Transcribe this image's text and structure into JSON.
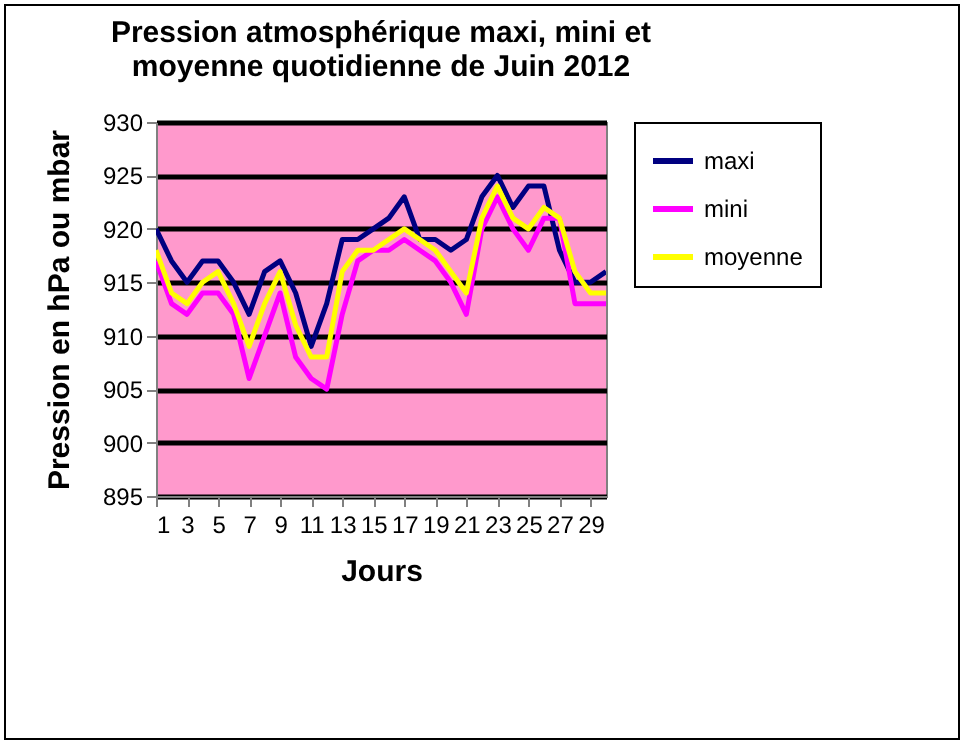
{
  "chart_data": {
    "type": "line",
    "title": [
      "Pression atmosphérique maxi, mini et",
      "moyenne quotidienne de Juin  2012"
    ],
    "xlabel": "Jours",
    "ylabel": "Pression en hPa ou mbar",
    "x": [
      1,
      2,
      3,
      4,
      5,
      6,
      7,
      8,
      9,
      10,
      11,
      12,
      13,
      14,
      15,
      16,
      17,
      18,
      19,
      20,
      21,
      22,
      23,
      24,
      25,
      26,
      27,
      28,
      29,
      30
    ],
    "series": [
      {
        "name": "maxi",
        "color": "#000080",
        "values": [
          920,
          917,
          915,
          917,
          917,
          915,
          912,
          916,
          917,
          914,
          909,
          913,
          919,
          919,
          920,
          921,
          923,
          919,
          919,
          918,
          919,
          923,
          925,
          922,
          924,
          924,
          918,
          915,
          915,
          916
        ]
      },
      {
        "name": "mini",
        "color": "#ff00ff",
        "values": [
          917,
          913,
          912,
          914,
          914,
          912,
          906,
          910,
          914,
          908,
          906,
          905,
          912,
          917,
          918,
          918,
          919,
          918,
          917,
          915,
          912,
          920,
          923,
          920,
          918,
          921,
          921,
          913,
          913,
          913
        ]
      },
      {
        "name": "moyenne",
        "color": "#ffff00",
        "values": [
          918,
          914,
          913,
          915,
          916,
          913,
          909,
          913,
          916,
          911,
          908,
          908,
          916,
          918,
          918,
          919,
          920,
          919,
          918,
          916,
          914,
          921,
          924,
          921,
          920,
          922,
          921,
          916,
          914,
          914
        ]
      }
    ],
    "xlim": [
      1,
      30
    ],
    "xticks": [
      1,
      3,
      5,
      7,
      9,
      11,
      13,
      15,
      17,
      19,
      21,
      23,
      25,
      27,
      29
    ],
    "ylim": [
      895,
      930
    ],
    "yticks": [
      895,
      900,
      905,
      910,
      915,
      920,
      925,
      930
    ],
    "grid": "y",
    "legend": "right",
    "marker": "none",
    "line_style": "solid"
  }
}
